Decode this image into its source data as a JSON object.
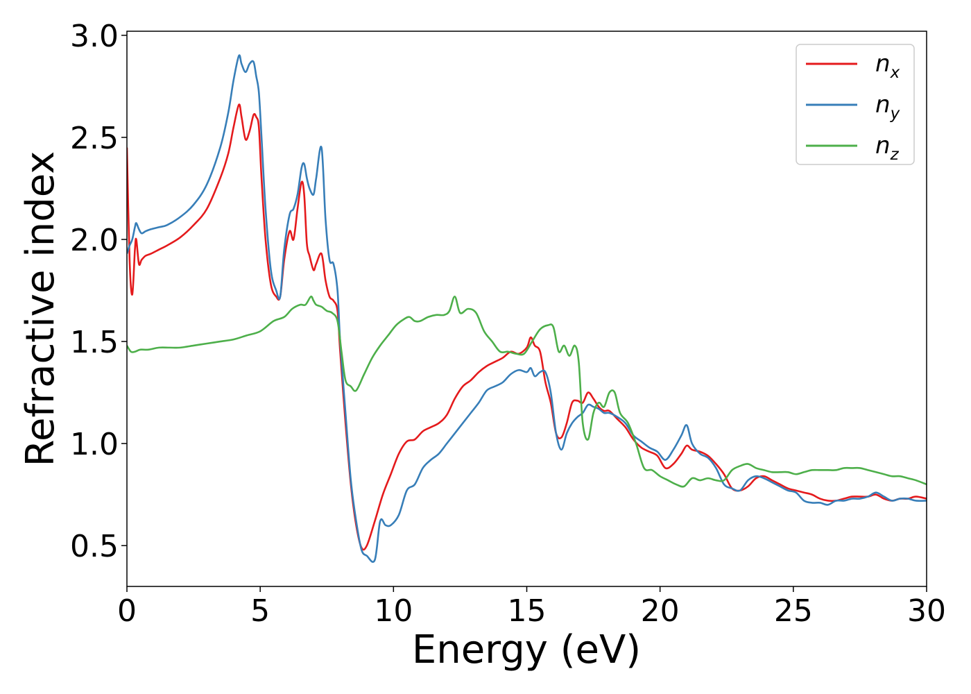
{
  "chart_data": {
    "type": "line",
    "xlabel": "Energy (eV)",
    "ylabel": "Refractive index",
    "xlim": [
      0,
      30
    ],
    "ylim": [
      0.3,
      3.02
    ],
    "xticks": [
      0,
      5,
      10,
      15,
      20,
      25,
      30
    ],
    "xtick_labels": [
      "0",
      "5",
      "10",
      "15",
      "20",
      "25",
      "30"
    ],
    "yticks": [
      0.5,
      1.0,
      1.5,
      2.0,
      2.5,
      3.0
    ],
    "ytick_labels": [
      "0.5",
      "1.0",
      "1.5",
      "2.0",
      "2.5",
      "3.0"
    ],
    "grid": false,
    "legend_position": "top-right",
    "series": [
      {
        "name": "n_x",
        "legend_base": "n",
        "legend_sub": "x",
        "color": "#e41a1c",
        "x": [
          0,
          0.1,
          0.2,
          0.3,
          0.35,
          0.45,
          0.55,
          0.7,
          0.9,
          1.2,
          1.5,
          2.0,
          2.5,
          3.0,
          3.5,
          3.8,
          4.0,
          4.2,
          4.3,
          4.45,
          4.6,
          4.75,
          4.85,
          4.95,
          5.05,
          5.2,
          5.4,
          5.6,
          5.75,
          5.9,
          6.1,
          6.25,
          6.4,
          6.55,
          6.65,
          6.75,
          6.85,
          7.0,
          7.1,
          7.3,
          7.45,
          7.6,
          7.75,
          7.9,
          8.0,
          8.2,
          8.4,
          8.6,
          8.8,
          9.0,
          9.3,
          9.6,
          9.9,
          10.2,
          10.5,
          10.8,
          11.1,
          11.4,
          11.7,
          12.0,
          12.3,
          12.6,
          12.9,
          13.2,
          13.5,
          13.8,
          14.1,
          14.4,
          14.7,
          15.0,
          15.15,
          15.3,
          15.5,
          15.7,
          15.9,
          16.1,
          16.3,
          16.5,
          16.7,
          16.9,
          17.1,
          17.3,
          17.5,
          17.7,
          17.9,
          18.1,
          18.4,
          18.7,
          19.0,
          19.3,
          19.6,
          19.9,
          20.2,
          20.5,
          20.8,
          21.0,
          21.2,
          21.5,
          21.8,
          22.1,
          22.4,
          22.7,
          23.0,
          23.3,
          23.6,
          23.9,
          24.2,
          24.5,
          24.8,
          25.1,
          25.4,
          25.7,
          26.0,
          26.3,
          26.6,
          26.9,
          27.2,
          27.5,
          27.8,
          28.1,
          28.4,
          28.7,
          29.0,
          29.3,
          29.6,
          30.0
        ],
        "y": [
          2.45,
          1.9,
          1.73,
          1.95,
          2.0,
          1.88,
          1.9,
          1.92,
          1.93,
          1.95,
          1.97,
          2.01,
          2.07,
          2.15,
          2.3,
          2.42,
          2.55,
          2.66,
          2.6,
          2.49,
          2.53,
          2.61,
          2.6,
          2.55,
          2.3,
          2.0,
          1.78,
          1.72,
          1.72,
          1.9,
          2.04,
          2.0,
          2.15,
          2.28,
          2.22,
          1.98,
          1.92,
          1.85,
          1.88,
          1.93,
          1.8,
          1.72,
          1.7,
          1.65,
          1.45,
          1.1,
          0.8,
          0.6,
          0.49,
          0.5,
          0.62,
          0.75,
          0.85,
          0.95,
          1.01,
          1.02,
          1.06,
          1.08,
          1.1,
          1.14,
          1.22,
          1.28,
          1.31,
          1.35,
          1.38,
          1.4,
          1.42,
          1.45,
          1.44,
          1.47,
          1.52,
          1.48,
          1.45,
          1.3,
          1.2,
          1.05,
          1.03,
          1.1,
          1.2,
          1.21,
          1.2,
          1.25,
          1.22,
          1.18,
          1.16,
          1.16,
          1.12,
          1.08,
          1.02,
          0.98,
          0.96,
          0.94,
          0.88,
          0.9,
          0.95,
          0.99,
          0.97,
          0.96,
          0.94,
          0.9,
          0.85,
          0.78,
          0.77,
          0.79,
          0.83,
          0.84,
          0.82,
          0.8,
          0.78,
          0.77,
          0.76,
          0.75,
          0.73,
          0.72,
          0.72,
          0.73,
          0.74,
          0.74,
          0.74,
          0.75,
          0.73,
          0.72,
          0.73,
          0.73,
          0.74,
          0.73
        ]
      },
      {
        "name": "n_y",
        "legend_base": "n",
        "legend_sub": "y",
        "color": "#377eb8",
        "x": [
          0,
          0.1,
          0.2,
          0.3,
          0.35,
          0.45,
          0.55,
          0.7,
          0.9,
          1.2,
          1.5,
          2.0,
          2.5,
          3.0,
          3.5,
          3.8,
          4.0,
          4.2,
          4.3,
          4.45,
          4.6,
          4.75,
          4.85,
          4.95,
          5.05,
          5.2,
          5.4,
          5.6,
          5.75,
          5.9,
          6.1,
          6.25,
          6.4,
          6.55,
          6.65,
          6.75,
          6.85,
          7.0,
          7.1,
          7.3,
          7.45,
          7.6,
          7.75,
          7.9,
          8.0,
          8.2,
          8.4,
          8.6,
          8.8,
          9.0,
          9.3,
          9.5,
          9.7,
          9.9,
          10.2,
          10.5,
          10.8,
          11.1,
          11.4,
          11.7,
          12.0,
          12.3,
          12.6,
          12.9,
          13.2,
          13.5,
          13.8,
          14.1,
          14.4,
          14.7,
          15.0,
          15.15,
          15.3,
          15.5,
          15.7,
          15.9,
          16.1,
          16.3,
          16.5,
          16.7,
          16.9,
          17.1,
          17.3,
          17.5,
          17.7,
          17.9,
          18.1,
          18.4,
          18.7,
          19.0,
          19.3,
          19.6,
          19.9,
          20.2,
          20.5,
          20.8,
          21.0,
          21.2,
          21.5,
          21.8,
          22.1,
          22.4,
          22.7,
          23.0,
          23.3,
          23.6,
          23.9,
          24.2,
          24.5,
          24.8,
          25.1,
          25.4,
          25.7,
          26.0,
          26.3,
          26.6,
          26.9,
          27.2,
          27.5,
          27.8,
          28.1,
          28.4,
          28.7,
          29.0,
          29.3,
          29.6,
          30.0
        ],
        "y": [
          1.93,
          1.97,
          2.0,
          2.06,
          2.08,
          2.05,
          2.03,
          2.04,
          2.05,
          2.06,
          2.07,
          2.11,
          2.17,
          2.27,
          2.45,
          2.62,
          2.78,
          2.9,
          2.86,
          2.82,
          2.86,
          2.87,
          2.8,
          2.72,
          2.5,
          2.15,
          1.85,
          1.75,
          1.72,
          1.95,
          2.12,
          2.15,
          2.22,
          2.35,
          2.37,
          2.3,
          2.25,
          2.22,
          2.3,
          2.45,
          2.1,
          1.9,
          1.88,
          1.75,
          1.5,
          1.15,
          0.82,
          0.62,
          0.48,
          0.45,
          0.43,
          0.62,
          0.6,
          0.6,
          0.65,
          0.77,
          0.8,
          0.88,
          0.92,
          0.95,
          1.0,
          1.05,
          1.1,
          1.15,
          1.2,
          1.26,
          1.28,
          1.3,
          1.34,
          1.36,
          1.35,
          1.37,
          1.33,
          1.35,
          1.35,
          1.25,
          1.05,
          0.97,
          1.05,
          1.1,
          1.13,
          1.15,
          1.19,
          1.18,
          1.17,
          1.15,
          1.15,
          1.13,
          1.1,
          1.04,
          1.01,
          0.98,
          0.96,
          0.92,
          0.97,
          1.04,
          1.09,
          1.0,
          0.95,
          0.93,
          0.88,
          0.8,
          0.78,
          0.77,
          0.82,
          0.84,
          0.83,
          0.81,
          0.79,
          0.77,
          0.76,
          0.72,
          0.71,
          0.71,
          0.7,
          0.72,
          0.72,
          0.73,
          0.73,
          0.74,
          0.76,
          0.74,
          0.72,
          0.73,
          0.73,
          0.72,
          0.72
        ]
      },
      {
        "name": "n_z",
        "legend_base": "n",
        "legend_sub": "z",
        "color": "#4daf4a",
        "x": [
          0,
          0.15,
          0.3,
          0.5,
          0.8,
          1.2,
          1.6,
          2.0,
          2.5,
          3.0,
          3.5,
          4.0,
          4.5,
          5.0,
          5.5,
          5.9,
          6.2,
          6.5,
          6.7,
          6.9,
          7.0,
          7.1,
          7.3,
          7.5,
          7.7,
          7.9,
          8.05,
          8.2,
          8.4,
          8.6,
          8.9,
          9.2,
          9.5,
          9.8,
          10.1,
          10.4,
          10.6,
          10.8,
          11.0,
          11.3,
          11.6,
          11.9,
          12.1,
          12.3,
          12.5,
          12.8,
          13.1,
          13.4,
          13.7,
          14.0,
          14.3,
          14.6,
          14.9,
          15.2,
          15.5,
          15.8,
          16.0,
          16.2,
          16.4,
          16.6,
          16.8,
          16.95,
          17.1,
          17.3,
          17.5,
          17.7,
          17.9,
          18.1,
          18.3,
          18.5,
          18.8,
          19.1,
          19.4,
          19.7,
          20.0,
          20.3,
          20.6,
          20.9,
          21.2,
          21.5,
          21.8,
          22.1,
          22.4,
          22.7,
          23.0,
          23.3,
          23.6,
          23.9,
          24.2,
          24.5,
          24.8,
          25.1,
          25.4,
          25.7,
          26.0,
          26.3,
          26.6,
          26.9,
          27.2,
          27.5,
          27.8,
          28.1,
          28.4,
          28.7,
          29.0,
          29.3,
          29.6,
          30.0
        ],
        "y": [
          1.48,
          1.45,
          1.45,
          1.46,
          1.46,
          1.47,
          1.47,
          1.47,
          1.48,
          1.49,
          1.5,
          1.51,
          1.53,
          1.55,
          1.6,
          1.62,
          1.66,
          1.68,
          1.68,
          1.72,
          1.7,
          1.68,
          1.67,
          1.65,
          1.64,
          1.6,
          1.45,
          1.31,
          1.28,
          1.26,
          1.34,
          1.42,
          1.48,
          1.53,
          1.58,
          1.61,
          1.62,
          1.6,
          1.6,
          1.62,
          1.63,
          1.63,
          1.65,
          1.72,
          1.64,
          1.66,
          1.64,
          1.55,
          1.5,
          1.45,
          1.45,
          1.44,
          1.44,
          1.5,
          1.56,
          1.58,
          1.57,
          1.45,
          1.48,
          1.43,
          1.48,
          1.4,
          1.1,
          1.02,
          1.15,
          1.2,
          1.18,
          1.25,
          1.25,
          1.15,
          1.1,
          1.0,
          0.88,
          0.87,
          0.84,
          0.82,
          0.8,
          0.79,
          0.83,
          0.82,
          0.83,
          0.82,
          0.82,
          0.87,
          0.89,
          0.9,
          0.88,
          0.87,
          0.86,
          0.86,
          0.86,
          0.85,
          0.86,
          0.87,
          0.87,
          0.87,
          0.87,
          0.88,
          0.88,
          0.88,
          0.87,
          0.86,
          0.85,
          0.84,
          0.84,
          0.83,
          0.82,
          0.8
        ]
      }
    ]
  }
}
